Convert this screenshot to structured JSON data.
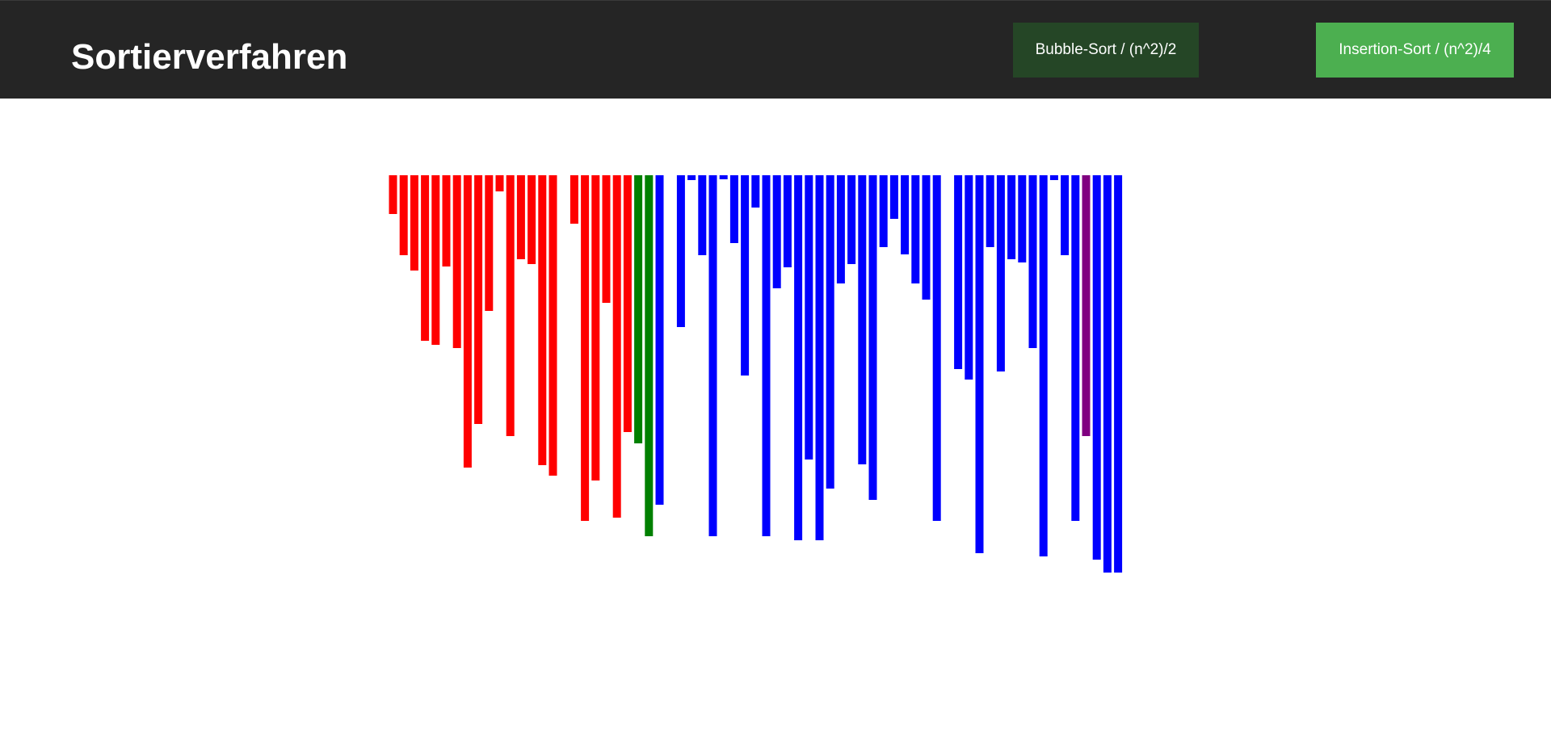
{
  "header": {
    "title": "Sortierverfahren",
    "background": "#252525"
  },
  "buttons": {
    "bubble_label": "Bubble-Sort / (n^2)/2",
    "bubble_color": "#254626",
    "insertion_label": "Insertion-Sort / (n^2)/4",
    "insertion_color": "#4caf50"
  },
  "chart_data": {
    "type": "bar",
    "orientation": "downward",
    "colors": {
      "red": "#ff0000",
      "green": "#008000",
      "blue": "#0000ff",
      "purple": "#800080"
    },
    "ylim": [
      0,
      500
    ],
    "values": [
      48,
      99,
      118,
      205,
      210,
      113,
      214,
      362,
      308,
      168,
      20,
      323,
      104,
      110,
      359,
      372,
      0,
      60,
      428,
      378,
      158,
      424,
      318,
      332,
      447,
      408,
      0,
      188,
      6,
      99,
      447,
      5,
      84,
      248,
      40,
      447,
      140,
      114,
      452,
      352,
      452,
      388,
      134,
      110,
      358,
      402,
      89,
      54,
      98,
      134,
      154,
      428,
      0,
      240,
      253,
      468,
      89,
      243,
      104,
      108,
      214,
      472,
      6,
      99,
      428,
      323,
      476,
      492,
      492
    ],
    "bar_colors": [
      "red",
      "red",
      "red",
      "red",
      "red",
      "red",
      "red",
      "red",
      "red",
      "red",
      "red",
      "red",
      "red",
      "red",
      "red",
      "red",
      "red",
      "red",
      "red",
      "red",
      "red",
      "red",
      "red",
      "green",
      "green",
      "blue",
      "blue",
      "blue",
      "blue",
      "blue",
      "blue",
      "blue",
      "blue",
      "blue",
      "blue",
      "blue",
      "blue",
      "blue",
      "blue",
      "blue",
      "blue",
      "blue",
      "blue",
      "blue",
      "blue",
      "blue",
      "blue",
      "blue",
      "blue",
      "blue",
      "blue",
      "blue",
      "blue",
      "blue",
      "blue",
      "blue",
      "blue",
      "blue",
      "blue",
      "blue",
      "blue",
      "blue",
      "blue",
      "blue",
      "blue",
      "purple",
      "blue",
      "blue",
      "blue"
    ]
  }
}
